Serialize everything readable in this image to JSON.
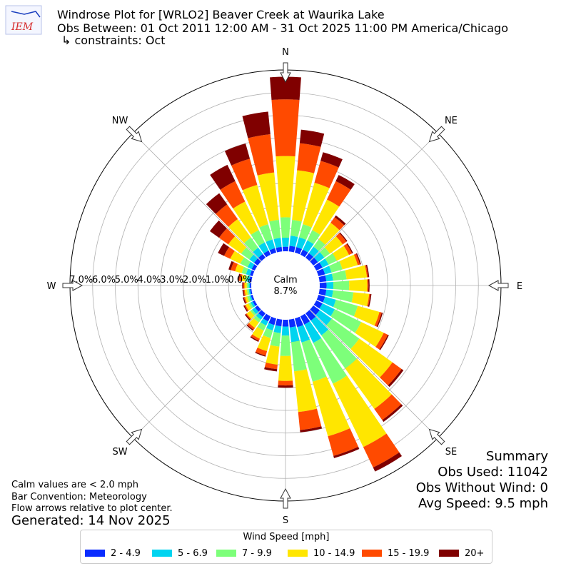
{
  "header": {
    "logo_text": "IEM",
    "title_line1": "Windrose Plot for [WRLO2] Beaver Creek at Waurika Lake",
    "title_line2": "Obs Between: 01 Oct 2011 12:00 AM - 31 Oct 2025 11:00 PM America/Chicago",
    "title_line3": "↳ constraints: Oct"
  },
  "footer": {
    "calm_note": "Calm values are < 2.0 mph",
    "bar_convention": "Bar Convention: Meteorology",
    "flow_note": "Flow arrows relative to plot center.",
    "generated": "Generated: 14 Nov 2025"
  },
  "summary": {
    "title": "Summary",
    "obs_used": "Obs Used: 11042",
    "obs_without_wind": "Obs Without Wind: 0",
    "avg_speed": "Avg Speed: 9.5 mph"
  },
  "chart_data": {
    "type": "windrose",
    "calm_label": "Calm",
    "calm_value": "8.7%",
    "radial_max": 8.0,
    "radial_ticks": [
      0,
      1,
      2,
      3,
      4,
      5,
      6,
      7
    ],
    "radial_tick_labels": [
      "0.0%",
      "1.0%",
      "2.0%",
      "3.0%",
      "4.0%",
      "5.0%",
      "6.0%",
      "7.0%"
    ],
    "compass_labels": [
      {
        "label": "N",
        "angle": 0
      },
      {
        "label": "NE",
        "angle": 45
      },
      {
        "label": "E",
        "angle": 90
      },
      {
        "label": "SE",
        "angle": 135
      },
      {
        "label": "S",
        "angle": 180
      },
      {
        "label": "SW",
        "angle": 225
      },
      {
        "label": "W",
        "angle": 270
      },
      {
        "label": "NW",
        "angle": 315
      }
    ],
    "legend_title": "Wind Speed [mph]",
    "bins": [
      "2 - 4.9",
      "5 - 6.9",
      "7 - 9.9",
      "10 - 14.9",
      "15 - 19.9",
      "20+"
    ],
    "colors": [
      "#0a2cff",
      "#00d4f0",
      "#7dff7a",
      "#ffe600",
      "#ff4a00",
      "#800000"
    ],
    "directions": [
      0,
      10,
      20,
      30,
      40,
      50,
      60,
      70,
      80,
      90,
      100,
      110,
      120,
      130,
      140,
      150,
      160,
      170,
      180,
      190,
      200,
      210,
      220,
      230,
      240,
      250,
      260,
      270,
      280,
      290,
      300,
      310,
      320,
      330,
      340,
      350
    ],
    "cumulative": [
      [
        0.2,
        0.6,
        1.5,
        4.2,
        6.7,
        7.7
      ],
      [
        0.25,
        0.7,
        1.4,
        3.6,
        4.8,
        5.4
      ],
      [
        0.25,
        0.7,
        1.3,
        3.2,
        4.2,
        4.6
      ],
      [
        0.25,
        0.7,
        1.2,
        2.7,
        3.6,
        3.9
      ],
      [
        0.25,
        0.6,
        1.0,
        1.9,
        2.2,
        2.3
      ],
      [
        0.25,
        0.6,
        0.9,
        1.6,
        1.8,
        1.85
      ],
      [
        0.3,
        0.6,
        1.0,
        1.6,
        1.75,
        1.8
      ],
      [
        0.3,
        0.6,
        1.1,
        1.8,
        1.9,
        1.95
      ],
      [
        0.3,
        0.6,
        1.2,
        2.1,
        2.15,
        2.2
      ],
      [
        0.3,
        0.6,
        1.3,
        2.1,
        2.15,
        2.2
      ],
      [
        0.3,
        0.6,
        1.5,
        2.2,
        2.25,
        2.3
      ],
      [
        0.3,
        0.8,
        1.8,
        2.8,
        2.9,
        2.95
      ],
      [
        0.3,
        0.9,
        2.2,
        3.3,
        3.5,
        3.55
      ],
      [
        0.35,
        1.0,
        2.5,
        4.3,
        4.8,
        4.9
      ],
      [
        0.4,
        1.2,
        3.0,
        5.2,
        5.8,
        5.9
      ],
      [
        0.4,
        1.3,
        3.3,
        6.4,
        7.4,
        7.6
      ],
      [
        0.4,
        1.1,
        2.9,
        5.4,
        6.3,
        6.4
      ],
      [
        0.35,
        1.0,
        2.3,
        4.1,
        4.9,
        5.0
      ],
      [
        0.3,
        0.7,
        1.6,
        2.7,
        2.9,
        3.0
      ],
      [
        0.3,
        0.6,
        1.2,
        2.0,
        2.2,
        2.3
      ],
      [
        0.3,
        0.55,
        0.9,
        1.5,
        1.7,
        1.75
      ],
      [
        0.25,
        0.45,
        0.7,
        1.1,
        1.2,
        1.25
      ],
      [
        0.2,
        0.35,
        0.5,
        0.8,
        0.9,
        0.95
      ],
      [
        0.15,
        0.3,
        0.4,
        0.6,
        0.65,
        0.7
      ],
      [
        0.1,
        0.2,
        0.3,
        0.45,
        0.5,
        0.55
      ],
      [
        0.08,
        0.15,
        0.25,
        0.35,
        0.4,
        0.45
      ],
      [
        0.06,
        0.12,
        0.2,
        0.3,
        0.35,
        0.4
      ],
      [
        0.06,
        0.12,
        0.2,
        0.3,
        0.35,
        0.4
      ],
      [
        0.1,
        0.2,
        0.3,
        0.45,
        0.55,
        0.6
      ],
      [
        0.12,
        0.3,
        0.5,
        0.8,
        1.0,
        1.1
      ],
      [
        0.15,
        0.35,
        0.7,
        1.2,
        1.5,
        1.8
      ],
      [
        0.2,
        0.45,
        0.9,
        1.6,
        2.1,
        2.6
      ],
      [
        0.2,
        0.55,
        1.1,
        2.1,
        2.9,
        3.5
      ],
      [
        0.2,
        0.6,
        1.2,
        2.6,
        3.6,
        4.4
      ],
      [
        0.2,
        0.6,
        1.3,
        3.1,
        4.3,
        5.0
      ],
      [
        0.2,
        0.6,
        1.4,
        3.5,
        5.2,
        6.2
      ]
    ]
  }
}
